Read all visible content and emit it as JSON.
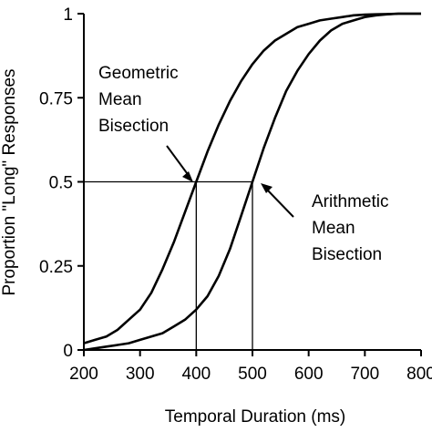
{
  "chart_data": {
    "type": "line",
    "xlabel": "Temporal Duration (ms)",
    "ylabel": "Proportion \"Long\" Responses",
    "xlim": [
      200,
      800
    ],
    "ylim": [
      0,
      1
    ],
    "x_ticks": [
      200,
      300,
      400,
      500,
      600,
      700,
      800
    ],
    "x_tick_labels": [
      "200",
      "300",
      "400",
      "500",
      "600",
      "700",
      "800"
    ],
    "y_ticks": [
      0,
      0.25,
      0.5,
      0.75,
      1
    ],
    "y_tick_labels": [
      "0",
      "0.25",
      "0.5",
      "0.75",
      "1"
    ],
    "grid": false,
    "series": [
      {
        "x": [
          200,
          220,
          240,
          260,
          280,
          300,
          320,
          340,
          360,
          380,
          400,
          420,
          440,
          460,
          480,
          500,
          520,
          540,
          560,
          580,
          600,
          620,
          640,
          660,
          680,
          700,
          720,
          740,
          760,
          780,
          800
        ],
        "y": [
          0.02,
          0.03,
          0.04,
          0.06,
          0.09,
          0.12,
          0.17,
          0.24,
          0.32,
          0.41,
          0.5,
          0.59,
          0.67,
          0.74,
          0.8,
          0.85,
          0.89,
          0.92,
          0.94,
          0.96,
          0.97,
          0.98,
          0.985,
          0.99,
          0.995,
          0.997,
          0.998,
          0.999,
          1.0,
          1.0,
          1.0
        ]
      },
      {
        "x": [
          200,
          220,
          240,
          260,
          280,
          300,
          320,
          340,
          360,
          380,
          400,
          420,
          440,
          460,
          480,
          500,
          520,
          540,
          560,
          580,
          600,
          620,
          640,
          660,
          680,
          700,
          720,
          740,
          760,
          780,
          800
        ],
        "y": [
          0.0,
          0.005,
          0.01,
          0.015,
          0.02,
          0.03,
          0.04,
          0.05,
          0.07,
          0.09,
          0.12,
          0.16,
          0.22,
          0.3,
          0.4,
          0.5,
          0.6,
          0.69,
          0.77,
          0.83,
          0.88,
          0.92,
          0.95,
          0.97,
          0.98,
          0.99,
          0.995,
          0.998,
          1.0,
          1.0,
          1.0
        ]
      }
    ],
    "reference_lines": [
      {
        "x": 400,
        "y": 0.5
      },
      {
        "x": 500,
        "y": 0.5
      }
    ],
    "annotations": [
      {
        "lines": [
          "Geometric",
          "Mean",
          "Bisection"
        ],
        "points_to": {
          "x": 400,
          "y": 0.5
        }
      },
      {
        "lines": [
          "Arithmetic",
          "Mean",
          "Bisection"
        ],
        "points_to": {
          "x": 500,
          "y": 0.5
        }
      }
    ]
  }
}
